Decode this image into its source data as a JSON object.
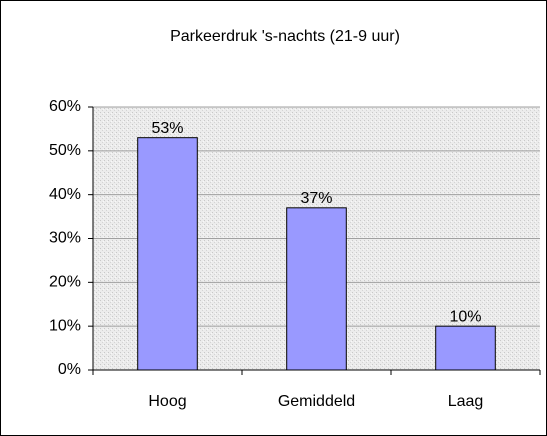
{
  "chart_data": {
    "type": "bar",
    "title": "Parkeerdruk 's-nachts (21-9 uur)",
    "categories": [
      "Hoog",
      "Gemiddeld",
      "Laag"
    ],
    "values": [
      53,
      37,
      10
    ],
    "value_labels": [
      "53%",
      "37%",
      "10%"
    ],
    "color": "#9999ff",
    "ylim": [
      0,
      60
    ],
    "yticks": [
      {
        "value": 0,
        "label": "0%"
      },
      {
        "value": 10,
        "label": "10%"
      },
      {
        "value": 20,
        "label": "20%"
      },
      {
        "value": 30,
        "label": "30%"
      },
      {
        "value": 40,
        "label": "40%"
      },
      {
        "value": 50,
        "label": "50%"
      },
      {
        "value": 60,
        "label": "60%"
      }
    ],
    "grid": true
  }
}
